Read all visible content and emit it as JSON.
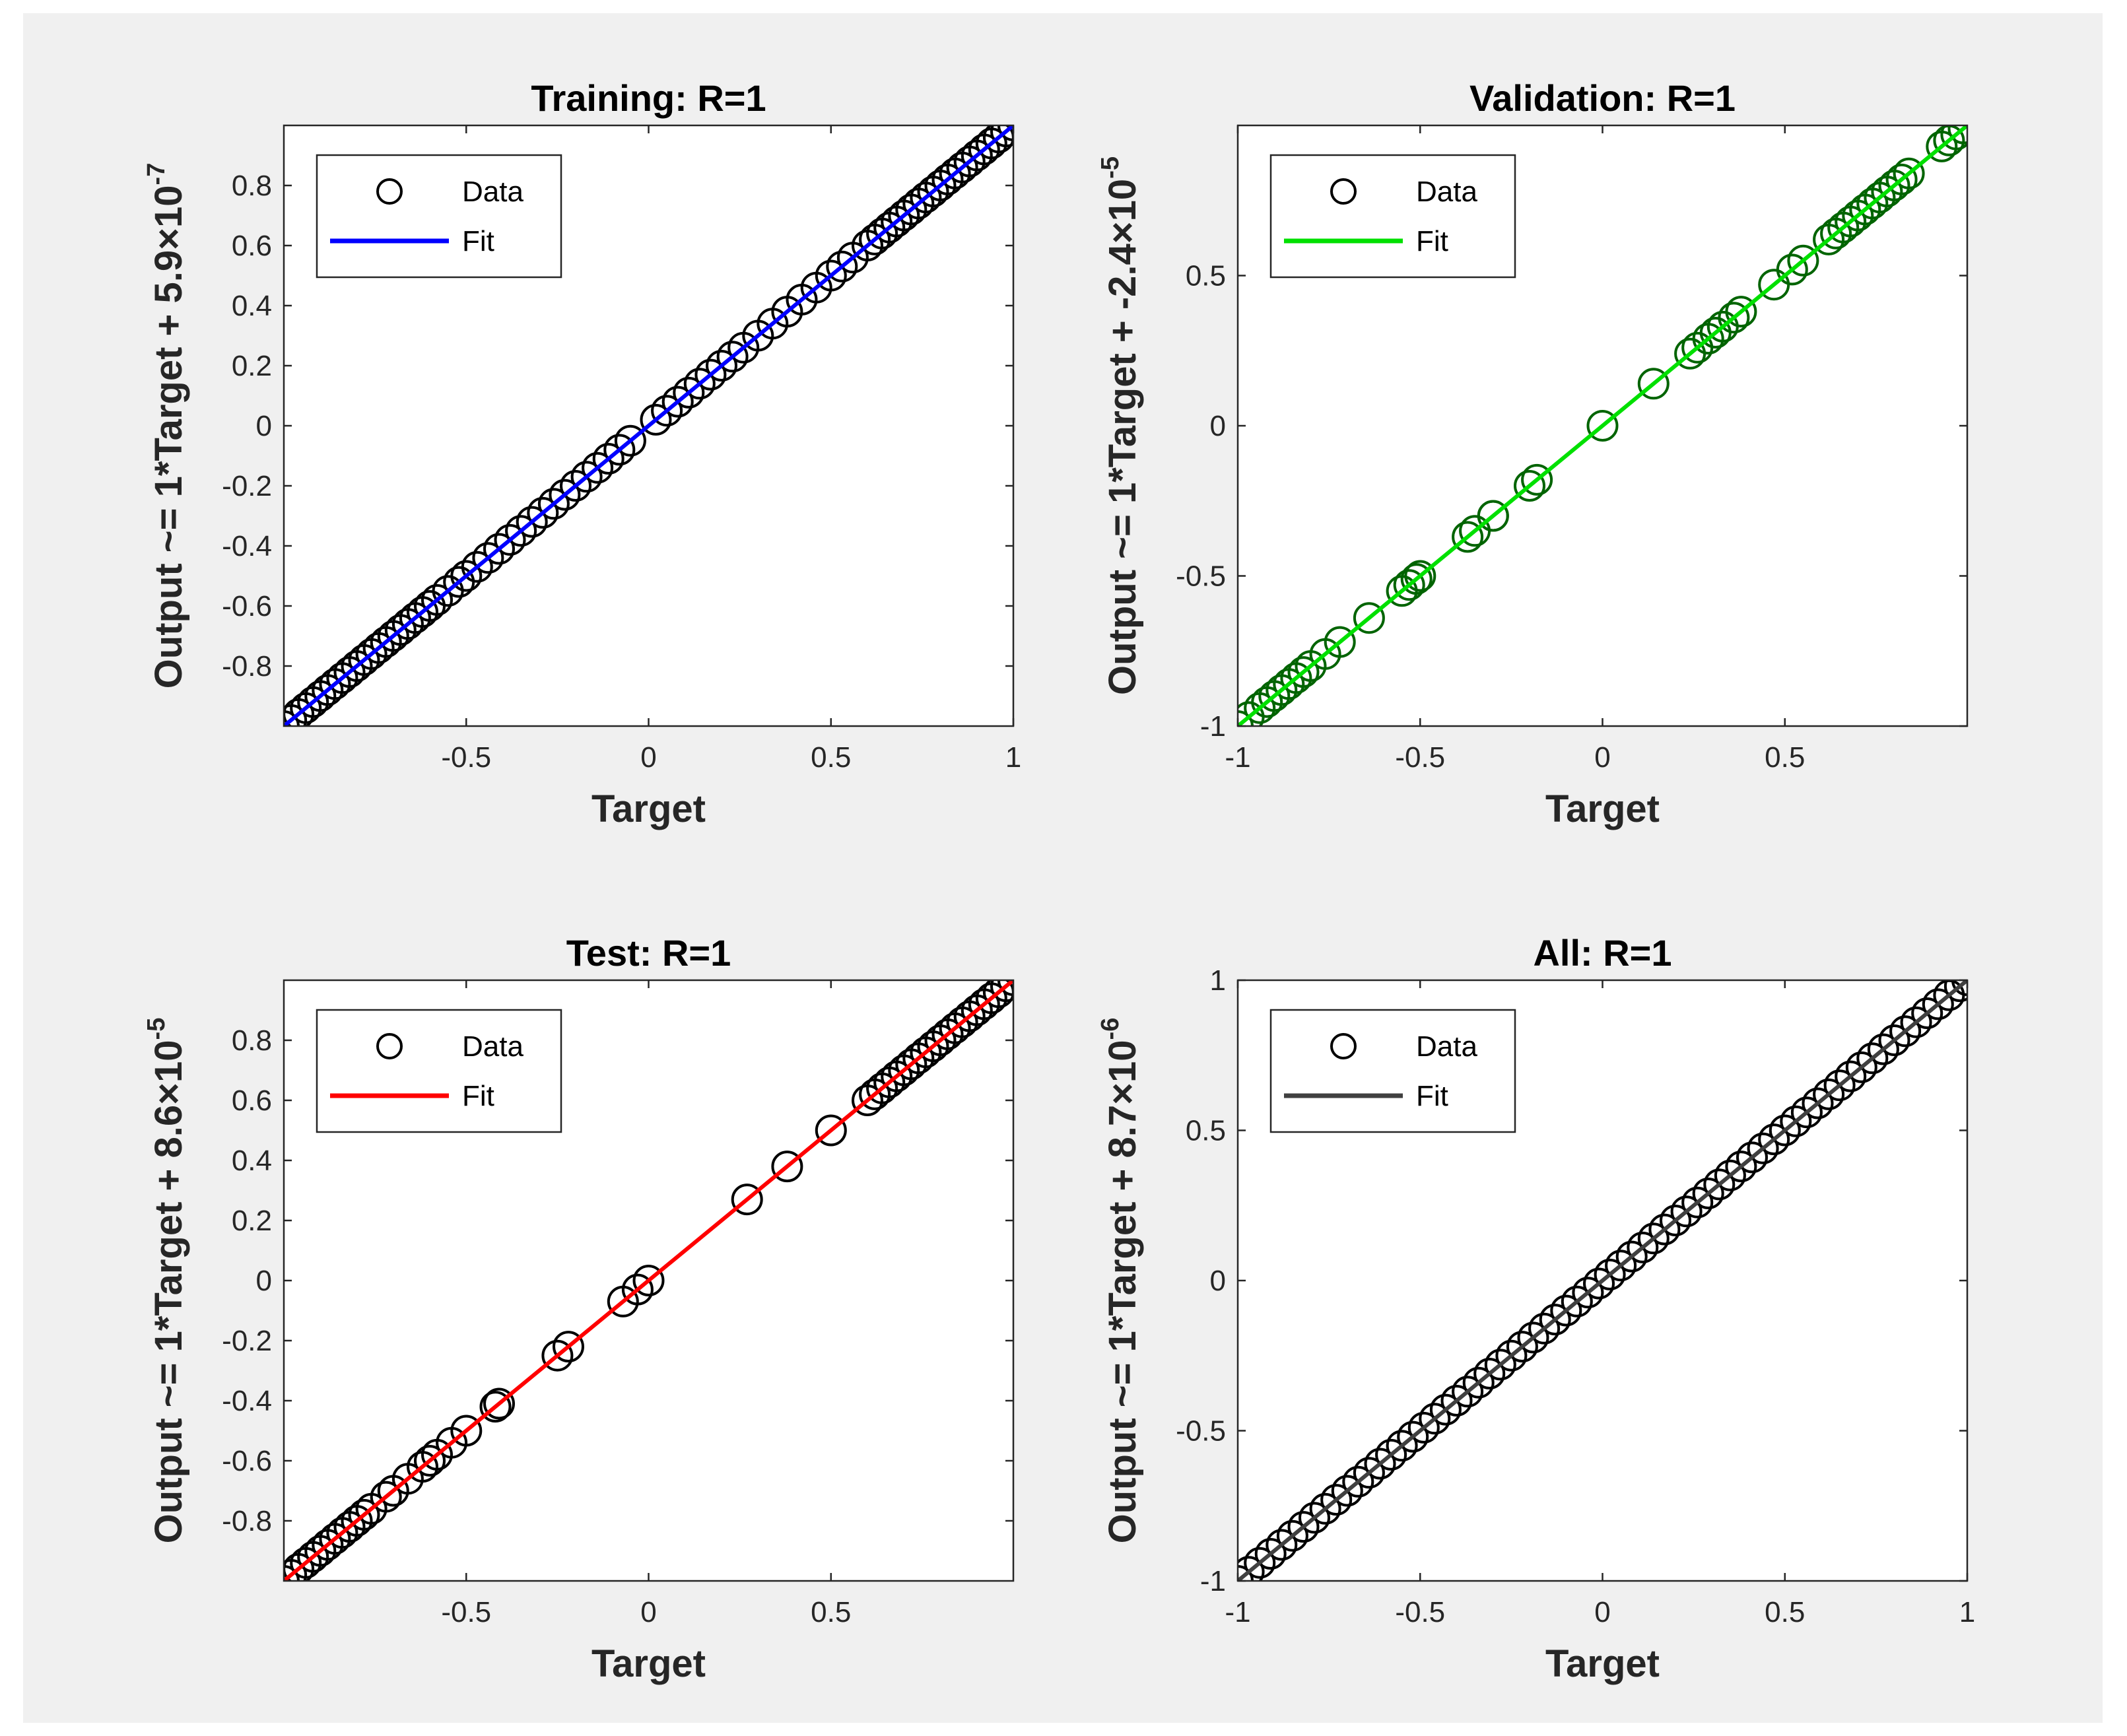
{
  "chart_data": [
    {
      "type": "scatter",
      "title": "Training: R=1",
      "xlabel": "Target",
      "ylabel": "Output ~= 1*Target + 5.9×10",
      "ylabel_exp": "-7",
      "xlim": [
        -1,
        1
      ],
      "ylim": [
        -1,
        1
      ],
      "xticks": [
        -0.5,
        0,
        0.5,
        1
      ],
      "xtick_labels": [
        "-0.5",
        "0",
        "0.5",
        "1"
      ],
      "yticks": [
        -0.8,
        -0.6,
        -0.4,
        -0.2,
        0,
        0.2,
        0.4,
        0.6,
        0.8
      ],
      "ytick_labels": [
        "-0.8",
        "-0.6",
        "-0.4",
        "-0.2",
        "0",
        "0.2",
        "0.4",
        "0.6",
        "0.8"
      ],
      "fit": {
        "slope": 1,
        "intercept": 5.9e-07,
        "color": "#0000ff"
      },
      "legend": {
        "placement": "top-left",
        "data_label": "Data",
        "fit_label": "Fit"
      },
      "marker_color": "#000000",
      "x": [
        -1,
        -0.98,
        -0.96,
        -0.94,
        -0.92,
        -0.9,
        -0.88,
        -0.86,
        -0.84,
        -0.82,
        -0.8,
        -0.78,
        -0.76,
        -0.74,
        -0.72,
        -0.7,
        -0.68,
        -0.66,
        -0.64,
        -0.62,
        -0.6,
        -0.58,
        -0.55,
        -0.52,
        -0.5,
        -0.47,
        -0.44,
        -0.41,
        -0.38,
        -0.35,
        -0.32,
        -0.29,
        -0.26,
        -0.23,
        -0.2,
        -0.17,
        -0.14,
        -0.11,
        -0.08,
        -0.05,
        0.02,
        0.05,
        0.08,
        0.11,
        0.14,
        0.17,
        0.2,
        0.23,
        0.26,
        0.3,
        0.34,
        0.38,
        0.42,
        0.46,
        0.5,
        0.53,
        0.56,
        0.6,
        0.62,
        0.64,
        0.66,
        0.68,
        0.7,
        0.72,
        0.74,
        0.76,
        0.78,
        0.8,
        0.82,
        0.84,
        0.86,
        0.88,
        0.9,
        0.92,
        0.94,
        0.96,
        0.98,
        1
      ]
    },
    {
      "type": "scatter",
      "title": "Validation: R=1",
      "xlabel": "Target",
      "ylabel": "Output ~= 1*Target + -2.4×10",
      "ylabel_exp": "-5",
      "xlim": [
        -1,
        1
      ],
      "ylim": [
        -1,
        1
      ],
      "xticks": [
        -1,
        -0.5,
        0,
        0.5
      ],
      "xtick_labels": [
        "-1",
        "-0.5",
        "0",
        "0.5"
      ],
      "yticks": [
        -1,
        -0.5,
        0,
        0.5
      ],
      "ytick_labels": [
        "-1",
        "-0.5",
        "0",
        "0.5"
      ],
      "fit": {
        "slope": 1,
        "intercept": -2.4e-05,
        "color": "#00e000"
      },
      "legend": {
        "placement": "top-left",
        "data_label": "Data",
        "fit_label": "Fit"
      },
      "marker_color": "#006400",
      "x": [
        -1,
        -0.97,
        -0.94,
        -0.92,
        -0.9,
        -0.88,
        -0.86,
        -0.84,
        -0.82,
        -0.8,
        -0.76,
        -0.72,
        -0.64,
        -0.55,
        -0.53,
        -0.51,
        -0.5,
        -0.37,
        -0.35,
        -0.3,
        -0.3,
        -0.2,
        -0.18,
        0,
        0.14,
        0.24,
        0.26,
        0.29,
        0.31,
        0.33,
        0.36,
        0.38,
        0.47,
        0.52,
        0.55,
        0.62,
        0.64,
        0.66,
        0.68,
        0.7,
        0.72,
        0.74,
        0.76,
        0.78,
        0.8,
        0.82,
        0.84,
        0.93,
        0.95,
        0.97,
        0.99
      ]
    },
    {
      "type": "scatter",
      "title": "Test: R=1",
      "xlabel": "Target",
      "ylabel": "Output ~= 1*Target + 8.6×10",
      "ylabel_exp": "-5",
      "xlim": [
        -1,
        1
      ],
      "ylim": [
        -1,
        1
      ],
      "xticks": [
        -0.5,
        0,
        0.5
      ],
      "xtick_labels": [
        "-0.5",
        "0",
        "0.5"
      ],
      "yticks": [
        -0.8,
        -0.6,
        -0.4,
        -0.2,
        0,
        0.2,
        0.4,
        0.6,
        0.8
      ],
      "ytick_labels": [
        "-0.8",
        "-0.6",
        "-0.4",
        "-0.2",
        "0",
        "0.2",
        "0.4",
        "0.6",
        "0.8"
      ],
      "fit": {
        "slope": 1,
        "intercept": 8.6e-05,
        "color": "#ff0000"
      },
      "legend": {
        "placement": "top-left",
        "data_label": "Data",
        "fit_label": "Fit"
      },
      "marker_color": "#000000",
      "x": [
        -1,
        -0.98,
        -0.96,
        -0.94,
        -0.92,
        -0.9,
        -0.88,
        -0.86,
        -0.84,
        -0.82,
        -0.8,
        -0.78,
        -0.76,
        -0.72,
        -0.7,
        -0.66,
        -0.62,
        -0.6,
        -0.58,
        -0.54,
        -0.5,
        -0.42,
        -0.41,
        -0.25,
        -0.22,
        -0.07,
        -0.03,
        0,
        0.27,
        0.38,
        0.5,
        0.6,
        0.62,
        0.64,
        0.66,
        0.68,
        0.7,
        0.72,
        0.74,
        0.76,
        0.78,
        0.8,
        0.82,
        0.84,
        0.86,
        0.88,
        0.9,
        0.92,
        0.94,
        0.96,
        0.98,
        1
      ]
    },
    {
      "type": "scatter",
      "title": "All: R=1",
      "xlabel": "Target",
      "ylabel": "Output ~= 1*Target + 8.7×10",
      "ylabel_exp": "-6",
      "xlim": [
        -1,
        1
      ],
      "ylim": [
        -1,
        1
      ],
      "xticks": [
        -1,
        -0.5,
        0,
        0.5,
        1
      ],
      "xtick_labels": [
        "-1",
        "-0.5",
        "0",
        "0.5",
        "1"
      ],
      "yticks": [
        -1,
        -0.5,
        0,
        0.5,
        1
      ],
      "ytick_labels": [
        "-1",
        "-0.5",
        "0",
        "0.5",
        "1"
      ],
      "fit": {
        "slope": 1,
        "intercept": 8.7e-06,
        "color": "#404040"
      },
      "legend": {
        "placement": "top-left",
        "data_label": "Data",
        "fit_label": "Fit"
      },
      "marker_color": "#000000",
      "x": [
        -1,
        -0.97,
        -0.94,
        -0.91,
        -0.88,
        -0.85,
        -0.82,
        -0.79,
        -0.76,
        -0.73,
        -0.7,
        -0.67,
        -0.64,
        -0.61,
        -0.58,
        -0.55,
        -0.52,
        -0.49,
        -0.46,
        -0.43,
        -0.4,
        -0.37,
        -0.34,
        -0.31,
        -0.28,
        -0.25,
        -0.22,
        -0.19,
        -0.16,
        -0.13,
        -0.1,
        -0.07,
        -0.04,
        -0.01,
        0.02,
        0.05,
        0.08,
        0.11,
        0.14,
        0.17,
        0.2,
        0.23,
        0.26,
        0.29,
        0.32,
        0.35,
        0.38,
        0.41,
        0.44,
        0.47,
        0.5,
        0.53,
        0.56,
        0.59,
        0.62,
        0.65,
        0.68,
        0.71,
        0.74,
        0.77,
        0.8,
        0.83,
        0.86,
        0.89,
        0.92,
        0.95,
        0.98,
        1
      ]
    }
  ]
}
